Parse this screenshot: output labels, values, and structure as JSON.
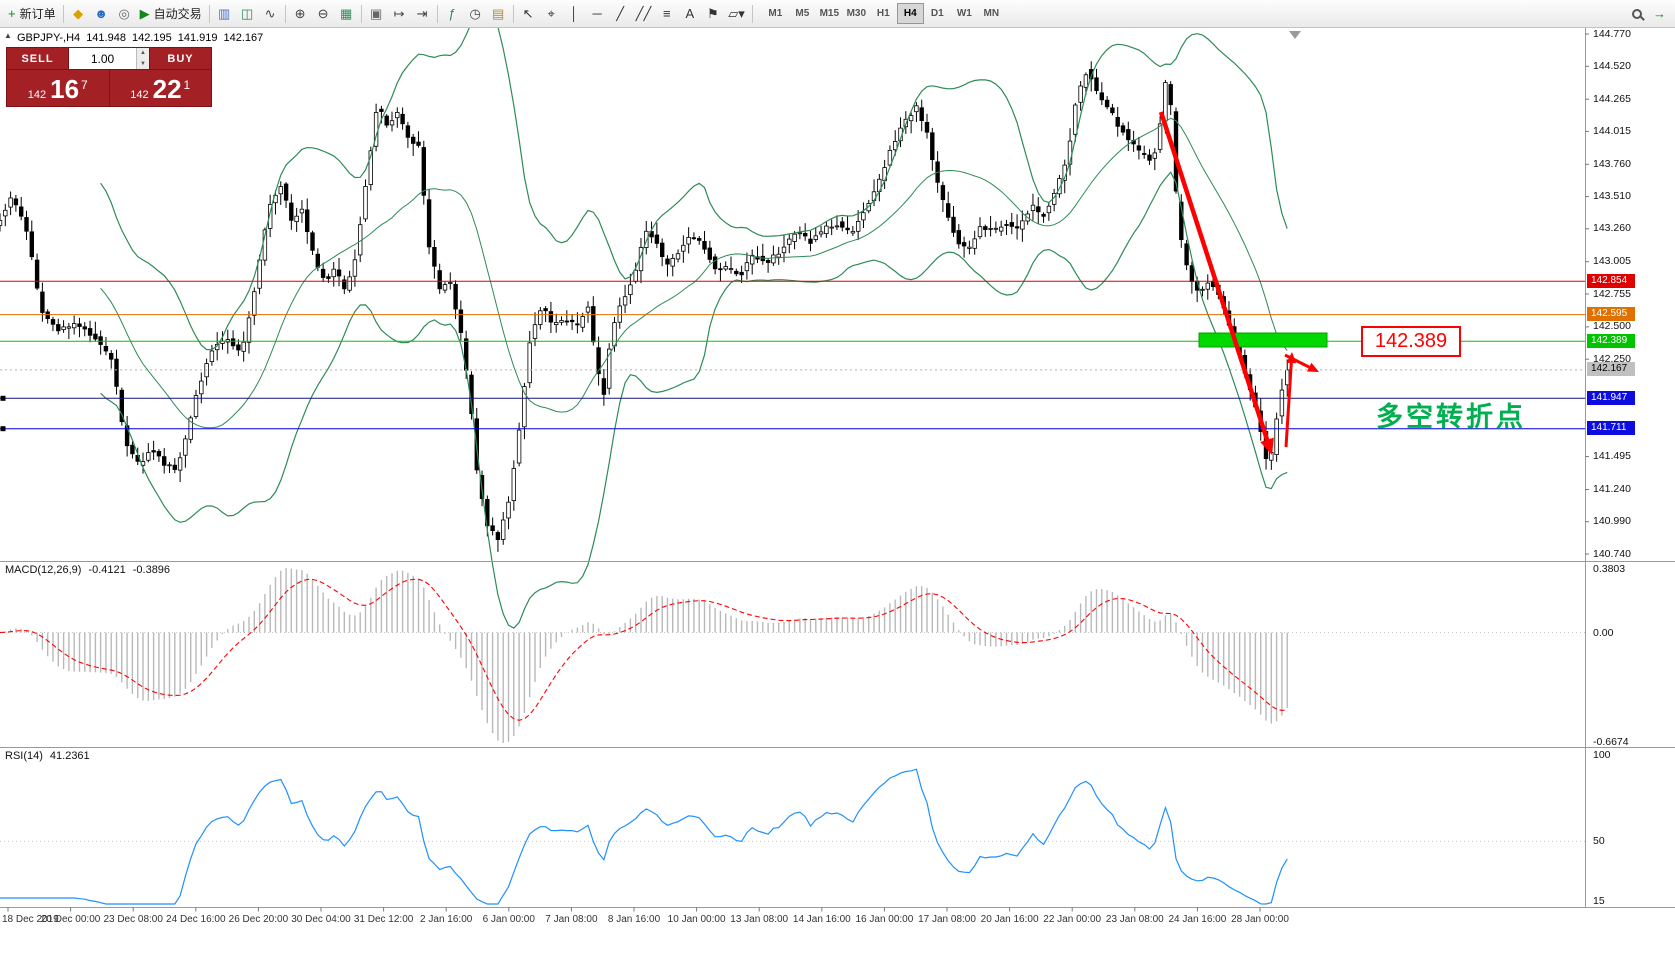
{
  "toolbar": {
    "buttons": [
      {
        "name": "new-order",
        "icon": "+",
        "color": "#12881c",
        "label": "新订单"
      },
      {
        "sep": true
      },
      {
        "name": "metaeditor",
        "icon": "◆",
        "color": "#d8a200"
      },
      {
        "name": "community",
        "icon": "☻",
        "color": "#2b6cc8"
      },
      {
        "name": "market",
        "icon": "◎",
        "color": "#666666"
      },
      {
        "name": "autotrading",
        "icon": "▶",
        "color": "#12881c",
        "label": "自动交易"
      },
      {
        "sep": true
      },
      {
        "name": "chart-bars",
        "icon": "▥",
        "color": "#4472c4"
      },
      {
        "name": "chart-candles",
        "icon": "◫",
        "color": "#2e8b57"
      },
      {
        "name": "chart-line",
        "icon": "∿",
        "color": "#444444"
      },
      {
        "sep": true
      },
      {
        "name": "zoom-in",
        "icon": "⊕",
        "color": "#444444"
      },
      {
        "name": "zoom-out",
        "icon": "⊖",
        "color": "#444444"
      },
      {
        "name": "grid",
        "icon": "▦",
        "color": "#2e8b57"
      },
      {
        "sep": true
      },
      {
        "name": "tile-windows",
        "icon": "▣",
        "color": "#666666"
      },
      {
        "name": "auto-scroll",
        "icon": "↦",
        "color": "#444444"
      },
      {
        "name": "chart-shift",
        "icon": "⇥",
        "color": "#444444"
      },
      {
        "sep": true
      },
      {
        "name": "indicators",
        "icon": "ƒ",
        "color": "#2e8b57"
      },
      {
        "name": "periods",
        "icon": "◷",
        "color": "#444444"
      },
      {
        "name": "templates",
        "icon": "▤",
        "color": "#b08a3e"
      },
      {
        "sep": true
      },
      {
        "name": "cursor",
        "icon": "↖",
        "color": "#333333"
      },
      {
        "name": "crosshair",
        "icon": "⌖",
        "color": "#333333"
      },
      {
        "name": "vertical-line",
        "icon": "│",
        "color": "#333333"
      },
      {
        "name": "horizontal-line",
        "icon": "─",
        "color": "#333333"
      },
      {
        "name": "trendline",
        "icon": "╱",
        "color": "#333333"
      },
      {
        "name": "channel",
        "icon": "╱╱",
        "color": "#333333"
      },
      {
        "name": "fibonacci",
        "icon": "≡",
        "color": "#333333"
      },
      {
        "name": "text",
        "icon": "A",
        "color": "#333333"
      },
      {
        "name": "label",
        "icon": "⚑",
        "color": "#333333"
      },
      {
        "name": "shapes",
        "icon": "▱▾",
        "color": "#333333"
      },
      {
        "sep": true
      }
    ],
    "timeframes": [
      "M1",
      "M5",
      "M15",
      "M30",
      "H1",
      "H4",
      "D1",
      "W1",
      "MN"
    ],
    "active_timeframe": "H4",
    "right_buttons": [
      {
        "name": "search",
        "icon": "css-magnifier"
      },
      {
        "name": "forward",
        "icon": "→",
        "color": "#12881c"
      }
    ],
    "collapse_icon": "▲",
    "vol_up_icon": "▲",
    "vol_down_icon": "▼"
  },
  "quote": {
    "symbol_period": "GBPJPY-,H4",
    "open": "141.948",
    "high": "142.195",
    "low": "141.919",
    "close": "142.167"
  },
  "trade_panel": {
    "sell_label": "SELL",
    "buy_label": "BUY",
    "volume": "1.00",
    "sell_price": {
      "base": "142",
      "big": "16",
      "sup": "7"
    },
    "buy_price": {
      "base": "142",
      "big": "22",
      "sup": "1"
    }
  },
  "price_axis": {
    "max": 144.77,
    "min": 140.74,
    "labels": [
      "144.770",
      "144.520",
      "144.265",
      "144.015",
      "143.760",
      "143.510",
      "143.260",
      "143.005",
      "142.755",
      "142.500",
      "142.250",
      "141.495",
      "141.240",
      "140.990",
      "140.740"
    ]
  },
  "levels": [
    {
      "price": 142.854,
      "label": "142.854",
      "color": "#e10000",
      "text_color": "#ffffff",
      "line_color": "#e10000",
      "line_style": "solid"
    },
    {
      "price": 142.595,
      "label": "142.595",
      "color": "#e07000",
      "text_color": "#ffffff",
      "line_color": "#e07000",
      "line_style": "solid"
    },
    {
      "price": 142.389,
      "label": "142.389",
      "color": "#00c400",
      "text_color": "#ffffff",
      "line_color": "#00c400",
      "line_style": "solid"
    },
    {
      "price": 142.167,
      "label": "142.167",
      "color": "#c0c0c0",
      "text_color": "#000000",
      "line_color": "#b4b4b4",
      "line_style": "dotted"
    },
    {
      "price": 141.947,
      "label": "141.947",
      "color": "#0d0de0",
      "text_color": "#ffffff",
      "line_color": "#14147a",
      "line_style": "solid",
      "handle": true
    },
    {
      "price": 141.711,
      "label": "141.711",
      "color": "#0d0de0",
      "text_color": "#ffffff",
      "line_color": "#0000e1",
      "line_style": "solid",
      "handle": true
    }
  ],
  "macd": {
    "label": "MACD(12,26,9)",
    "value_main": "-0.4121",
    "value_signal": "-0.3896",
    "scale_max": "0.3803",
    "scale_zero": "0.00",
    "scale_min": "-0.6674"
  },
  "rsi": {
    "label": "RSI(14)",
    "value": "41.2361",
    "scale_top": "100",
    "scale_mid": "50",
    "scale_bottom": "15"
  },
  "time_axis": [
    "18 Dec 2019",
    "20 Dec 00:00",
    "23 Dec 08:00",
    "24 Dec 16:00",
    "26 Dec 20:00",
    "30 Dec 04:00",
    "31 Dec 12:00",
    "2 Jan 16:00",
    "6 Jan 00:00",
    "7 Jan 08:00",
    "8 Jan 16:00",
    "10 Jan 00:00",
    "13 Jan 08:00",
    "14 Jan 16:00",
    "16 Jan 00:00",
    "17 Jan 08:00",
    "20 Jan 16:00",
    "22 Jan 00:00",
    "23 Jan 08:00",
    "24 Jan 16:00",
    "28 Jan 00:00"
  ],
  "annotations": {
    "callout_text": "142.389",
    "turning_point_text": "多空转折点",
    "callout_color": "#ff0000",
    "turning_point_color": "#00b050",
    "zone_color": "#00d800",
    "arrow_color": "#ff0000"
  },
  "chart_data": {
    "type": "candlestick",
    "symbol": "GBPJPY",
    "timeframe": "H4",
    "indicators": [
      "Bollinger Bands",
      "MACD(12,26,9)",
      "RSI(14)"
    ],
    "ylim": [
      140.74,
      144.77
    ],
    "price_path": [
      [
        0,
        143.3
      ],
      [
        14,
        143.52
      ],
      [
        28,
        143.25
      ],
      [
        42,
        142.62
      ],
      [
        58,
        142.48
      ],
      [
        76,
        142.52
      ],
      [
        94,
        142.42
      ],
      [
        110,
        142.25
      ],
      [
        122,
        141.62
      ],
      [
        136,
        141.42
      ],
      [
        148,
        141.56
      ],
      [
        160,
        141.44
      ],
      [
        172,
        141.4
      ],
      [
        182,
        141.68
      ],
      [
        192,
        142.02
      ],
      [
        206,
        142.34
      ],
      [
        220,
        142.42
      ],
      [
        234,
        142.3
      ],
      [
        248,
        142.85
      ],
      [
        260,
        143.42
      ],
      [
        272,
        143.6
      ],
      [
        282,
        143.32
      ],
      [
        292,
        143.42
      ],
      [
        304,
        143.02
      ],
      [
        314,
        142.86
      ],
      [
        324,
        142.96
      ],
      [
        334,
        142.76
      ],
      [
        344,
        143.08
      ],
      [
        354,
        143.66
      ],
      [
        364,
        144.22
      ],
      [
        374,
        144.06
      ],
      [
        384,
        144.16
      ],
      [
        394,
        143.96
      ],
      [
        404,
        143.9
      ],
      [
        414,
        143.12
      ],
      [
        424,
        142.8
      ],
      [
        434,
        142.86
      ],
      [
        444,
        142.46
      ],
      [
        452,
        142.02
      ],
      [
        460,
        141.35
      ],
      [
        470,
        140.96
      ],
      [
        480,
        140.86
      ],
      [
        490,
        141.14
      ],
      [
        500,
        141.68
      ],
      [
        510,
        142.38
      ],
      [
        522,
        142.68
      ],
      [
        532,
        142.52
      ],
      [
        544,
        142.56
      ],
      [
        556,
        142.5
      ],
      [
        566,
        142.68
      ],
      [
        574,
        142.22
      ],
      [
        581,
        141.96
      ],
      [
        589,
        142.48
      ],
      [
        599,
        142.7
      ],
      [
        611,
        142.9
      ],
      [
        621,
        143.24
      ],
      [
        631,
        143.18
      ],
      [
        641,
        142.96
      ],
      [
        652,
        143.06
      ],
      [
        664,
        143.2
      ],
      [
        676,
        143.14
      ],
      [
        688,
        142.96
      ],
      [
        700,
        142.96
      ],
      [
        712,
        142.9
      ],
      [
        724,
        143.06
      ],
      [
        738,
        143.0
      ],
      [
        752,
        143.1
      ],
      [
        766,
        143.24
      ],
      [
        779,
        143.16
      ],
      [
        793,
        143.26
      ],
      [
        806,
        143.3
      ],
      [
        819,
        143.22
      ],
      [
        831,
        143.4
      ],
      [
        844,
        143.6
      ],
      [
        857,
        143.88
      ],
      [
        869,
        144.08
      ],
      [
        881,
        144.2
      ],
      [
        891,
        144.02
      ],
      [
        901,
        143.62
      ],
      [
        911,
        143.36
      ],
      [
        921,
        143.16
      ],
      [
        931,
        143.1
      ],
      [
        943,
        143.28
      ],
      [
        955,
        143.24
      ],
      [
        967,
        143.3
      ],
      [
        979,
        143.26
      ],
      [
        991,
        143.44
      ],
      [
        1003,
        143.36
      ],
      [
        1014,
        143.54
      ],
      [
        1025,
        143.78
      ],
      [
        1035,
        144.28
      ],
      [
        1045,
        144.5
      ],
      [
        1055,
        144.32
      ],
      [
        1065,
        144.2
      ],
      [
        1075,
        144.06
      ],
      [
        1085,
        143.96
      ],
      [
        1095,
        143.86
      ],
      [
        1105,
        143.8
      ],
      [
        1113,
        143.9
      ],
      [
        1119,
        144.44
      ],
      [
        1125,
        144.22
      ],
      [
        1131,
        143.42
      ],
      [
        1137,
        143.06
      ],
      [
        1145,
        142.86
      ],
      [
        1153,
        142.76
      ],
      [
        1161,
        142.86
      ],
      [
        1169,
        142.8
      ],
      [
        1177,
        142.62
      ],
      [
        1185,
        142.42
      ],
      [
        1193,
        142.26
      ],
      [
        1199,
        142.06
      ],
      [
        1205,
        141.92
      ],
      [
        1211,
        141.72
      ],
      [
        1217,
        141.46
      ],
      [
        1223,
        141.54
      ],
      [
        1228,
        141.88
      ],
      [
        1232,
        142.04
      ],
      [
        1237,
        142.167
      ]
    ]
  }
}
